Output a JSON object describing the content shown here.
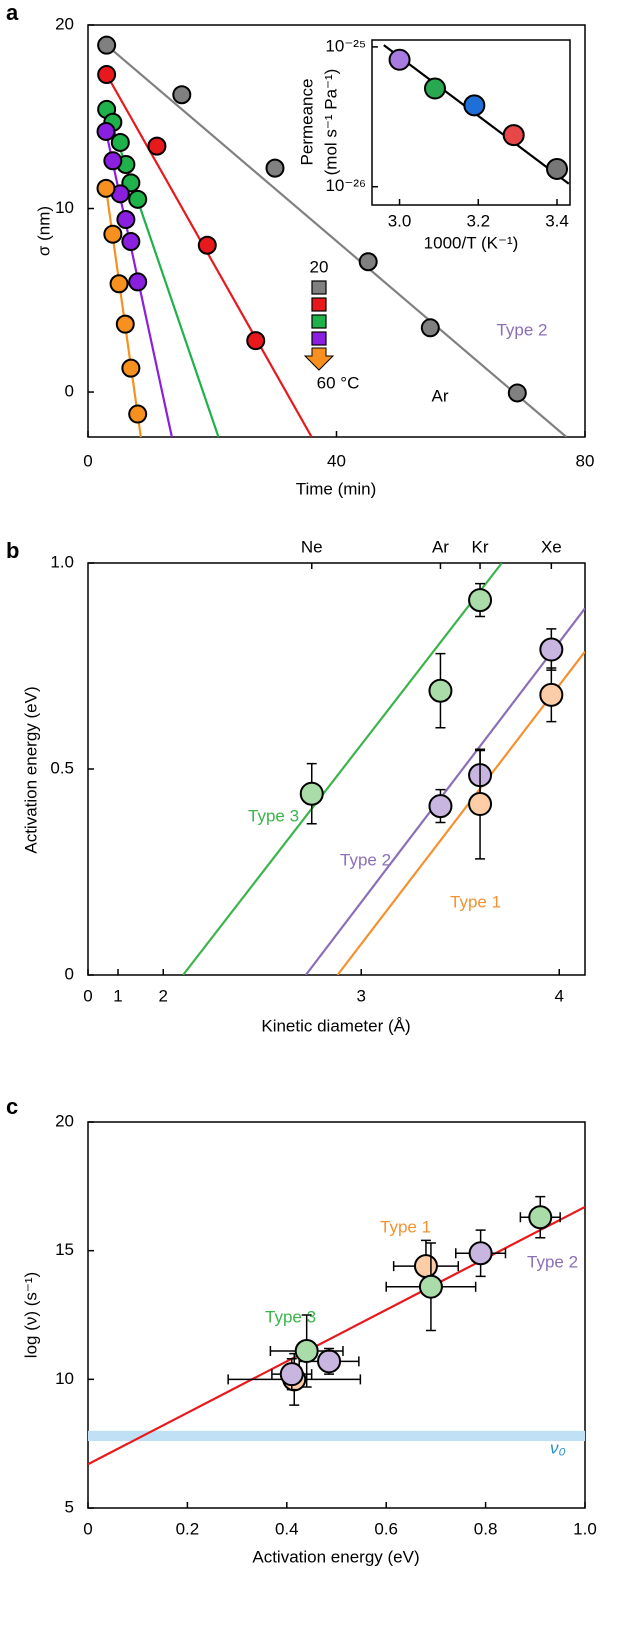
{
  "chart_data": [
    {
      "type": "scatter",
      "panel_label": "a",
      "xlabel": "Time (min)",
      "ylabel": "σ (nm)",
      "xlim": [
        0,
        80
      ],
      "ylim": [
        -2.45,
        20
      ],
      "xticks": [
        0,
        40,
        80
      ],
      "yticks": [
        0,
        10,
        20
      ],
      "series": [
        {
          "color": "#808080",
          "x": [
            3,
            15.1,
            30.1,
            45.1,
            55.1,
            69.1
          ],
          "values": [
            18.9,
            16.2,
            12.2,
            7.1,
            3.5,
            -0.05
          ],
          "fit": {
            "x": [
              3,
              77
            ],
            "values": [
              18.9,
              -2.45
            ]
          }
        },
        {
          "color": "#e8191c",
          "x": [
            3,
            11.1,
            19.2,
            27
          ],
          "values": [
            17.3,
            13.4,
            8.0,
            2.8
          ],
          "fit": {
            "x": [
              3,
              36
            ],
            "values": [
              17.3,
              -2.45
            ]
          }
        },
        {
          "color": "#1fb14a",
          "x": [
            3,
            4,
            5.2,
            6.1,
            6.9,
            8
          ],
          "values": [
            15.4,
            14.7,
            13.6,
            12.4,
            11.4,
            10.5
          ],
          "fit": {
            "x": [
              3,
              21
            ],
            "values": [
              15.4,
              -2.45
            ]
          }
        },
        {
          "color": "#8b1fe0",
          "x": [
            2.9,
            4,
            5.2,
            6.1,
            6.9,
            8
          ],
          "values": [
            14.2,
            12.6,
            10.8,
            9.4,
            8.2,
            6.0
          ],
          "fit": {
            "x": [
              2.9,
              13.5
            ],
            "values": [
              14.2,
              -2.45
            ]
          }
        },
        {
          "color": "#f7901e",
          "x": [
            2.9,
            4,
            5,
            6,
            6.9,
            8
          ],
          "values": [
            11.1,
            8.6,
            5.9,
            3.7,
            1.3,
            -1.2
          ],
          "fit": {
            "x": [
              2.9,
              8.5
            ],
            "values": [
              11.1,
              -2.45
            ]
          }
        }
      ],
      "legend_labels": [
        "20",
        "60 °C"
      ],
      "annotations": [
        {
          "text": "Type 2",
          "color": "#8a6fb8"
        },
        {
          "text": "Ar",
          "color": "#000000"
        }
      ]
    },
    {
      "type": "scatter",
      "log_y": true,
      "xlabel": "1000/T (K⁻¹)",
      "ylabel": [
        "Permeance",
        "(mol s⁻¹ Pa⁻¹)"
      ],
      "xlim": [
        2.93,
        3.433
      ],
      "ylim": [
        7.4e-27,
        1.12e-25
      ],
      "xticks": [
        {
          "value": 3,
          "label": "3.0"
        },
        3.2,
        3.4
      ],
      "yticks": [
        {
          "value": 1e-26,
          "label": "10⁻²⁶"
        },
        {
          "value": 1e-25,
          "label": "10⁻²⁵"
        }
      ],
      "series": [
        {
          "color": "#000000",
          "colors": [
            "#a77be0",
            "#28a850",
            "#1f6fd8",
            "#e8474a",
            "#777777"
          ],
          "x": [
            3.0,
            3.09,
            3.19,
            3.29,
            3.4
          ],
          "values": [
            8.09e-26,
            5.04e-26,
            3.82e-26,
            2.34e-26,
            1.34e-26
          ],
          "fit": {
            "x": [
              2.96,
              3.43
            ],
            "values": [
              1.03e-25,
              1.05e-26
            ]
          }
        }
      ]
    },
    {
      "type": "scatter",
      "panel_label": "b",
      "xlabel": "Kinetic diameter (Å)",
      "ylabel": "Activation energy (eV)",
      "xlim": [
        1.62,
        4.13
      ],
      "ylim": [
        0,
        1
      ],
      "xticks": [
        2,
        3,
        4
      ],
      "xticks_break": [
        0,
        1
      ],
      "yticks": [
        0,
        0.5,
        {
          "value": 1,
          "label": "1.0"
        }
      ],
      "top_ticks": [
        {
          "value": 2.75,
          "label": "Ne"
        },
        {
          "value": 3.4,
          "label": "Ar"
        },
        {
          "value": 3.6,
          "label": "Kr"
        },
        {
          "value": 3.96,
          "label": "Xe"
        }
      ],
      "series": [
        {
          "name": "Type 3",
          "color": "#3cb44b",
          "fill": "#a9dca8",
          "x": [
            2.75,
            3.4,
            3.6
          ],
          "values": [
            0.44,
            0.69,
            0.91
          ],
          "yerr": [
            0.073,
            0.09,
            0.04
          ],
          "fit": {
            "x": [
              2.1,
              3.71
            ],
            "values": [
              0,
              1
            ]
          }
        },
        {
          "name": "Type 2",
          "color": "#8a6fb8",
          "fill": "#c8b6e0",
          "x": [
            3.4,
            3.6,
            3.96
          ],
          "values": [
            0.41,
            0.485,
            0.79
          ],
          "yerr": [
            0.04,
            0.06,
            0.05
          ],
          "fit": {
            "x": [
              2.72,
              4.13
            ],
            "values": [
              0,
              0.89
            ]
          }
        },
        {
          "name": "Type 1",
          "color": "#f5922f",
          "fill": "#fccda6",
          "x": [
            3.6,
            3.96
          ],
          "values": [
            0.415,
            0.68
          ],
          "yerr": [
            0.133,
            0.065
          ],
          "fit": {
            "x": [
              2.88,
              4.13
            ],
            "values": [
              0,
              0.785
            ]
          }
        }
      ]
    },
    {
      "type": "scatter",
      "panel_label": "c",
      "xlabel": "Activation energy (eV)",
      "ylabel": "log (ν) (s⁻¹)",
      "xlim": [
        0,
        1
      ],
      "ylim": [
        5,
        20
      ],
      "xticks": [
        0,
        0.2,
        0.4,
        0.6,
        0.8,
        {
          "value": 1,
          "label": "1.0"
        }
      ],
      "yticks": [
        5,
        10,
        15,
        20
      ],
      "band": {
        "values": [
          7.6,
          8.0
        ],
        "color": "#bfe0f5",
        "label": "ν₀",
        "label_color": "#2a8fd0"
      },
      "fit": {
        "color": "#e8191c",
        "x": [
          0,
          1
        ],
        "values": [
          6.7,
          16.7
        ]
      },
      "series": [
        {
          "name": "Type 1",
          "color": "#f5922f",
          "fill": "#fccda6",
          "x": [
            0.415,
            0.68
          ],
          "values": [
            10.0,
            14.4
          ],
          "xerr": [
            0.133,
            0.065
          ],
          "yerr": [
            1.0,
            1.0
          ]
        },
        {
          "name": "Type 2",
          "color": "#8a6fb8",
          "fill": "#c8b6e0",
          "x": [
            0.41,
            0.485,
            0.79
          ],
          "values": [
            10.2,
            10.7,
            14.9
          ],
          "xerr": [
            0.04,
            0.06,
            0.05
          ],
          "yerr": [
            0.6,
            0.5,
            0.9
          ]
        },
        {
          "name": "Type 3",
          "color": "#3cb44b",
          "fill": "#a9dca8",
          "x": [
            0.44,
            0.69,
            0.91
          ],
          "values": [
            11.1,
            13.6,
            16.3
          ],
          "xerr": [
            0.073,
            0.09,
            0.04
          ],
          "yerr": [
            1.4,
            1.7,
            0.8
          ]
        }
      ]
    }
  ]
}
